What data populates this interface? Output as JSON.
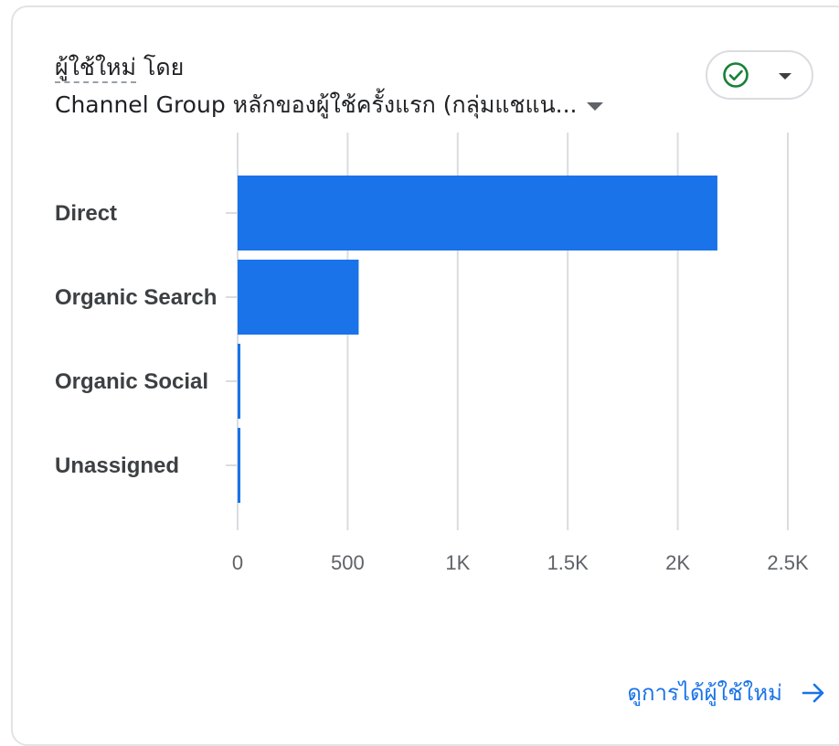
{
  "card": {
    "metric_label": "ผู้ใช้ใหม่",
    "by_label": "โดย",
    "dimension_label": "Channel Group หลักของผู้ใช้ครั้งแรก (กลุ่มแชแน...",
    "footer_link": "ดูการได้ผู้ใช้ใหม่"
  },
  "icons": {
    "status": "check-circle-icon",
    "dropdown": "caret-down-icon",
    "footer": "arrow-right-icon"
  },
  "colors": {
    "bar": "#1a73e8",
    "status_green": "#188038",
    "link": "#1a73e8"
  },
  "chart_data": {
    "type": "bar",
    "orientation": "horizontal",
    "categories": [
      "Direct",
      "Organic Search",
      "Organic Social",
      "Unassigned"
    ],
    "values": [
      2180,
      550,
      8,
      8
    ],
    "xlim": [
      0,
      2500
    ],
    "x_ticks": [
      0,
      500,
      1000,
      1500,
      2000,
      2500
    ],
    "x_tick_labels": [
      "0",
      "500",
      "1K",
      "1.5K",
      "2K",
      "2.5K"
    ],
    "grid": "vertical"
  }
}
